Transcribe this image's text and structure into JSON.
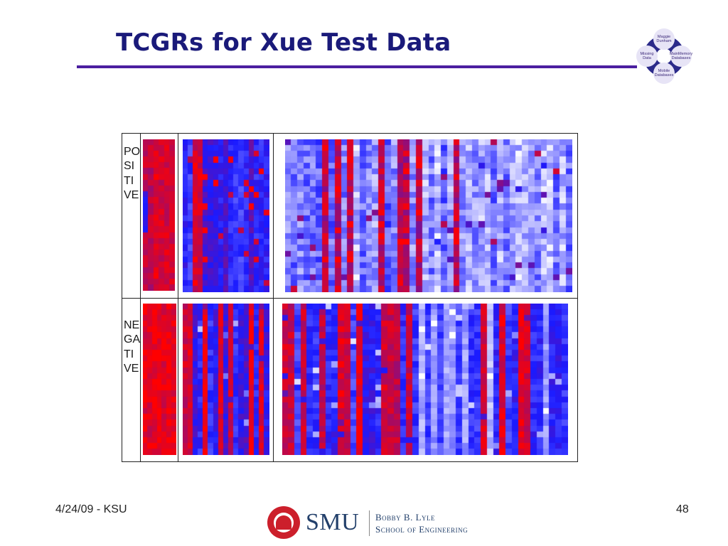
{
  "slide": {
    "title": "TCGRs for Xue Test Data",
    "footer_left": "4/24/09 - KSU",
    "page_number": "48"
  },
  "logo": {
    "top": "Maggie Dunham",
    "left": "Missing Data",
    "right": "MainMemory Databases",
    "bottom": "Mobile Databases"
  },
  "branding": {
    "smu": "SMU",
    "school_line1": "Bobby B. Lyle",
    "school_line2": "School of Engineering"
  },
  "figure": {
    "row_labels": {
      "positive": "POSITIVE",
      "negative": "NEGATIVE"
    }
  },
  "colors": {
    "title": "#1a1a7a",
    "rule": "#4b1fa0",
    "heat_low": "#ffffff",
    "heat_mid": "#1a1aff",
    "heat_high": "#ff0000"
  },
  "heatmaps": [
    {
      "id": "pos-1",
      "cols": 6,
      "rows": 26,
      "style": "red",
      "seed": 11
    },
    {
      "id": "pos-2",
      "cols": 17,
      "rows": 26,
      "style": "blue",
      "seed": 23
    },
    {
      "id": "pos-3",
      "cols": 46,
      "rows": 26,
      "style": "pale",
      "seed": 37
    },
    {
      "id": "neg-1",
      "cols": 7,
      "rows": 26,
      "style": "red-solid",
      "seed": 41
    },
    {
      "id": "neg-2",
      "cols": 17,
      "rows": 26,
      "style": "stripes",
      "seed": 53
    },
    {
      "id": "neg-3",
      "cols": 46,
      "rows": 26,
      "style": "stripes-wide",
      "seed": 67
    }
  ]
}
